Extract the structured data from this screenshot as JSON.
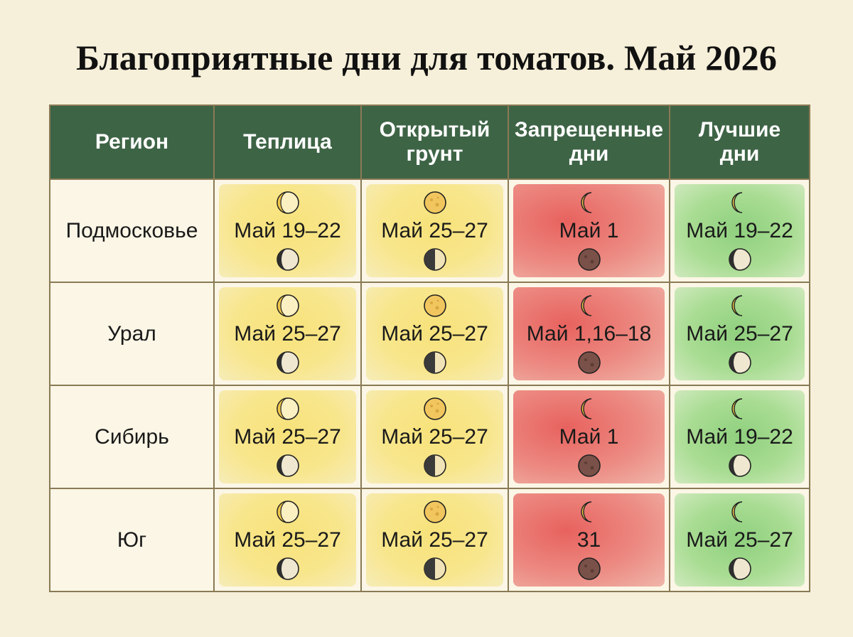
{
  "title": "Благоприятные дни для томатов. Май 2026",
  "headers": {
    "region": "Регион",
    "greenhouse": "Теплица",
    "open_ground": "Открытый грунт",
    "forbidden": "Запрещенные дни",
    "best": "Лучшие дни"
  },
  "colors": {
    "header_bg": "#3e6446",
    "greenhouse": "#f7e27a",
    "open_ground": "#f7e27a",
    "forbidden": "#e8625e",
    "best": "#8fd07e"
  },
  "rows": [
    {
      "region": "Подмосковье",
      "greenhouse": {
        "text": "Май 19–22",
        "top": "waxing-crescent-icon",
        "bottom": "waning-crescent-icon"
      },
      "open_ground": {
        "text": "Май 25–27",
        "top": "full-moon-icon",
        "bottom": "half-moon-icon"
      },
      "forbidden": {
        "text": "Май 1",
        "top": "crescent-icon",
        "bottom": "new-moon-icon"
      },
      "best": {
        "text": "Май 19–22",
        "top": "crescent-icon",
        "bottom": "waning-crescent-icon"
      }
    },
    {
      "region": "Урал",
      "greenhouse": {
        "text": "Май 25–27",
        "top": "waxing-crescent-icon",
        "bottom": "waning-crescent-icon"
      },
      "open_ground": {
        "text": "Май 25–27",
        "top": "full-moon-icon",
        "bottom": "half-moon-icon"
      },
      "forbidden": {
        "text": "Май 1,16–18",
        "top": "crescent-icon",
        "bottom": "new-moon-icon"
      },
      "best": {
        "text": "Май 25–27",
        "top": "crescent-icon",
        "bottom": "waning-crescent-icon"
      }
    },
    {
      "region": "Сибирь",
      "greenhouse": {
        "text": "Май 25–27",
        "top": "waxing-crescent-icon",
        "bottom": "waning-crescent-icon"
      },
      "open_ground": {
        "text": "Май 25–27",
        "top": "full-moon-icon",
        "bottom": "half-moon-icon"
      },
      "forbidden": {
        "text": "Май 1",
        "top": "crescent-icon",
        "bottom": "new-moon-icon"
      },
      "best": {
        "text": "Май 19–22",
        "top": "crescent-icon",
        "bottom": "waning-crescent-icon"
      }
    },
    {
      "region": "Юг",
      "greenhouse": {
        "text": "Май 25–27",
        "top": "waxing-crescent-icon",
        "bottom": "waning-crescent-icon"
      },
      "open_ground": {
        "text": "Май 25–27",
        "top": "full-moon-icon",
        "bottom": "half-moon-icon"
      },
      "forbidden": {
        "text": "31",
        "top": "crescent-icon",
        "bottom": "new-moon-icon"
      },
      "best": {
        "text": "Май 25–27",
        "top": "crescent-icon",
        "bottom": "waning-crescent-icon"
      }
    }
  ]
}
